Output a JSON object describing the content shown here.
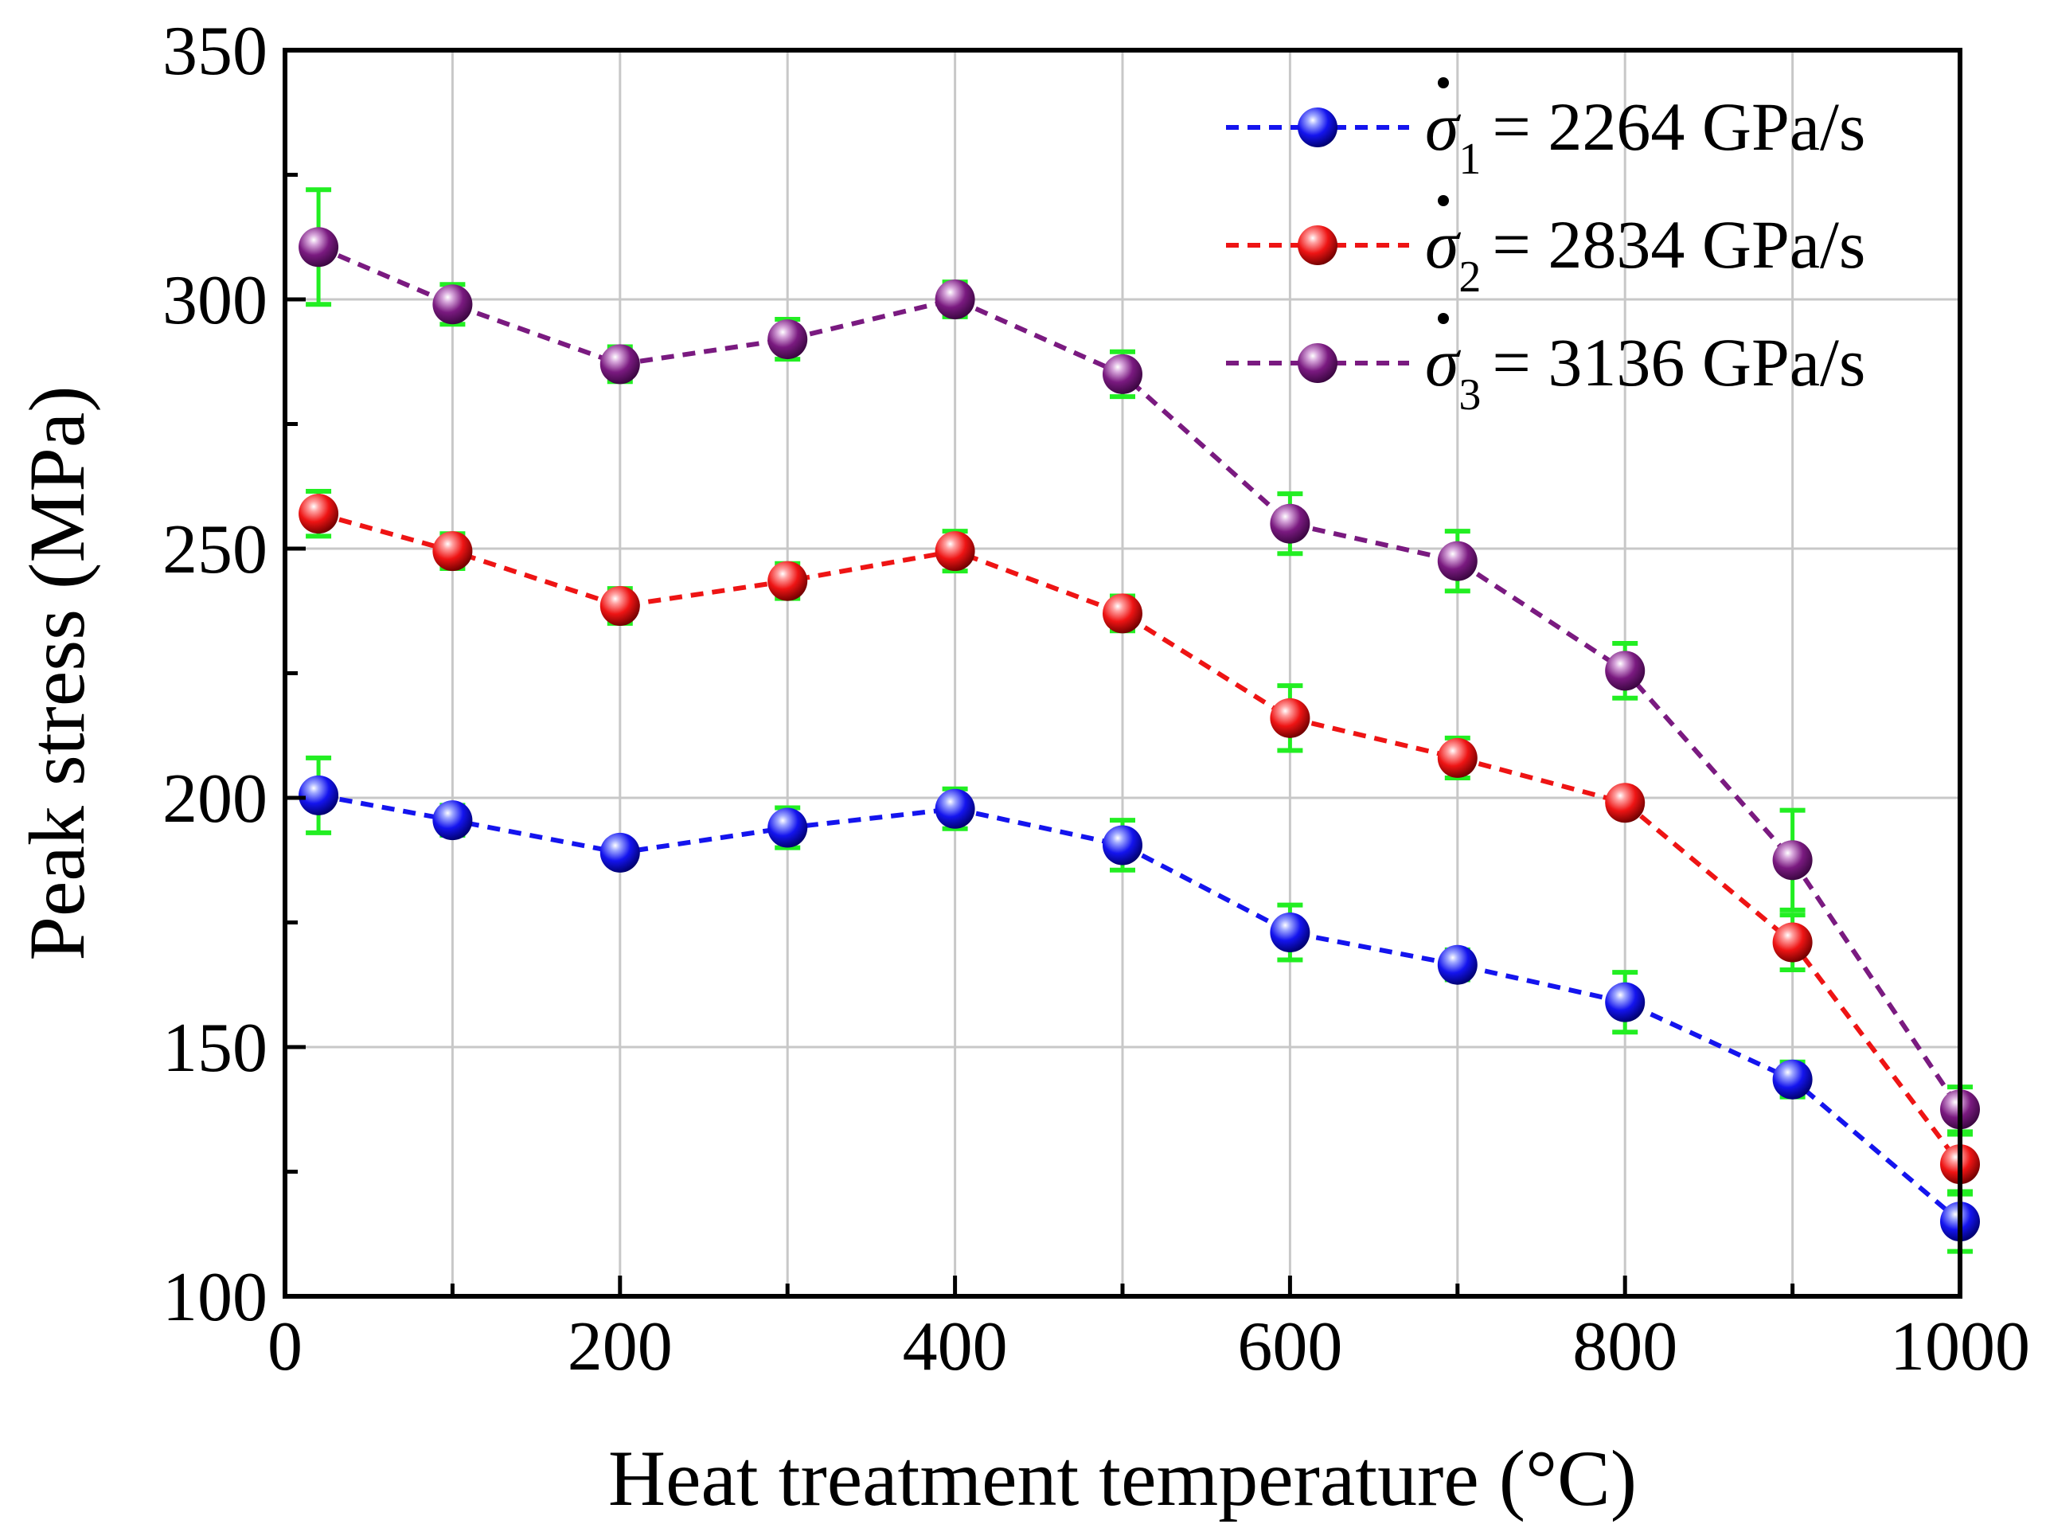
{
  "chart_data": {
    "type": "line",
    "title": "",
    "xlabel": "Heat treatment temperature (°C)",
    "ylabel": "Peak stress (MPa)",
    "xlim": [
      0,
      1000
    ],
    "ylim": [
      100,
      350
    ],
    "xticks": [
      0,
      200,
      400,
      600,
      800,
      1000
    ],
    "yticks": [
      100,
      150,
      200,
      250,
      300,
      350
    ],
    "grid": true,
    "legend_position": "top-right",
    "errorbar_color": "#22ee22",
    "x": [
      20,
      100,
      200,
      300,
      400,
      500,
      600,
      700,
      800,
      900,
      1000
    ],
    "series": [
      {
        "name": "σ̇1 = 2264 GPa/s",
        "symbol": "σ",
        "subscript": "1",
        "value_text": "= 2264 GPa/s",
        "color": "#1414ee",
        "values": [
          200.5,
          195.5,
          189,
          194,
          197.8,
          190.5,
          173,
          166.5,
          159,
          143.5,
          115
        ],
        "errors": [
          7.5,
          3,
          2.5,
          4,
          4,
          5,
          5.5,
          3,
          6,
          3.5,
          6
        ]
      },
      {
        "name": "σ̇2 = 2834 GPa/s",
        "symbol": "σ",
        "subscript": "2",
        "value_text": "= 2834 GPa/s",
        "color": "#ee1414",
        "values": [
          257,
          249.5,
          238.5,
          243.5,
          249.5,
          237,
          216,
          208,
          199,
          171,
          126.5
        ],
        "errors": [
          4.5,
          3.5,
          3.5,
          3.5,
          4,
          3.5,
          6.5,
          4,
          2.5,
          5.5,
          6
        ]
      },
      {
        "name": "σ̇3 = 3136 GPa/s",
        "symbol": "σ",
        "subscript": "3",
        "value_text": "= 3136 GPa/s",
        "color": "#7a1a80",
        "values": [
          310.5,
          299,
          287,
          292,
          300,
          285,
          255,
          247.5,
          225.5,
          187.5,
          137.5
        ],
        "errors": [
          11.5,
          4,
          3.5,
          4,
          3.5,
          4.5,
          6,
          6,
          5.5,
          10,
          4.5
        ]
      }
    ]
  }
}
